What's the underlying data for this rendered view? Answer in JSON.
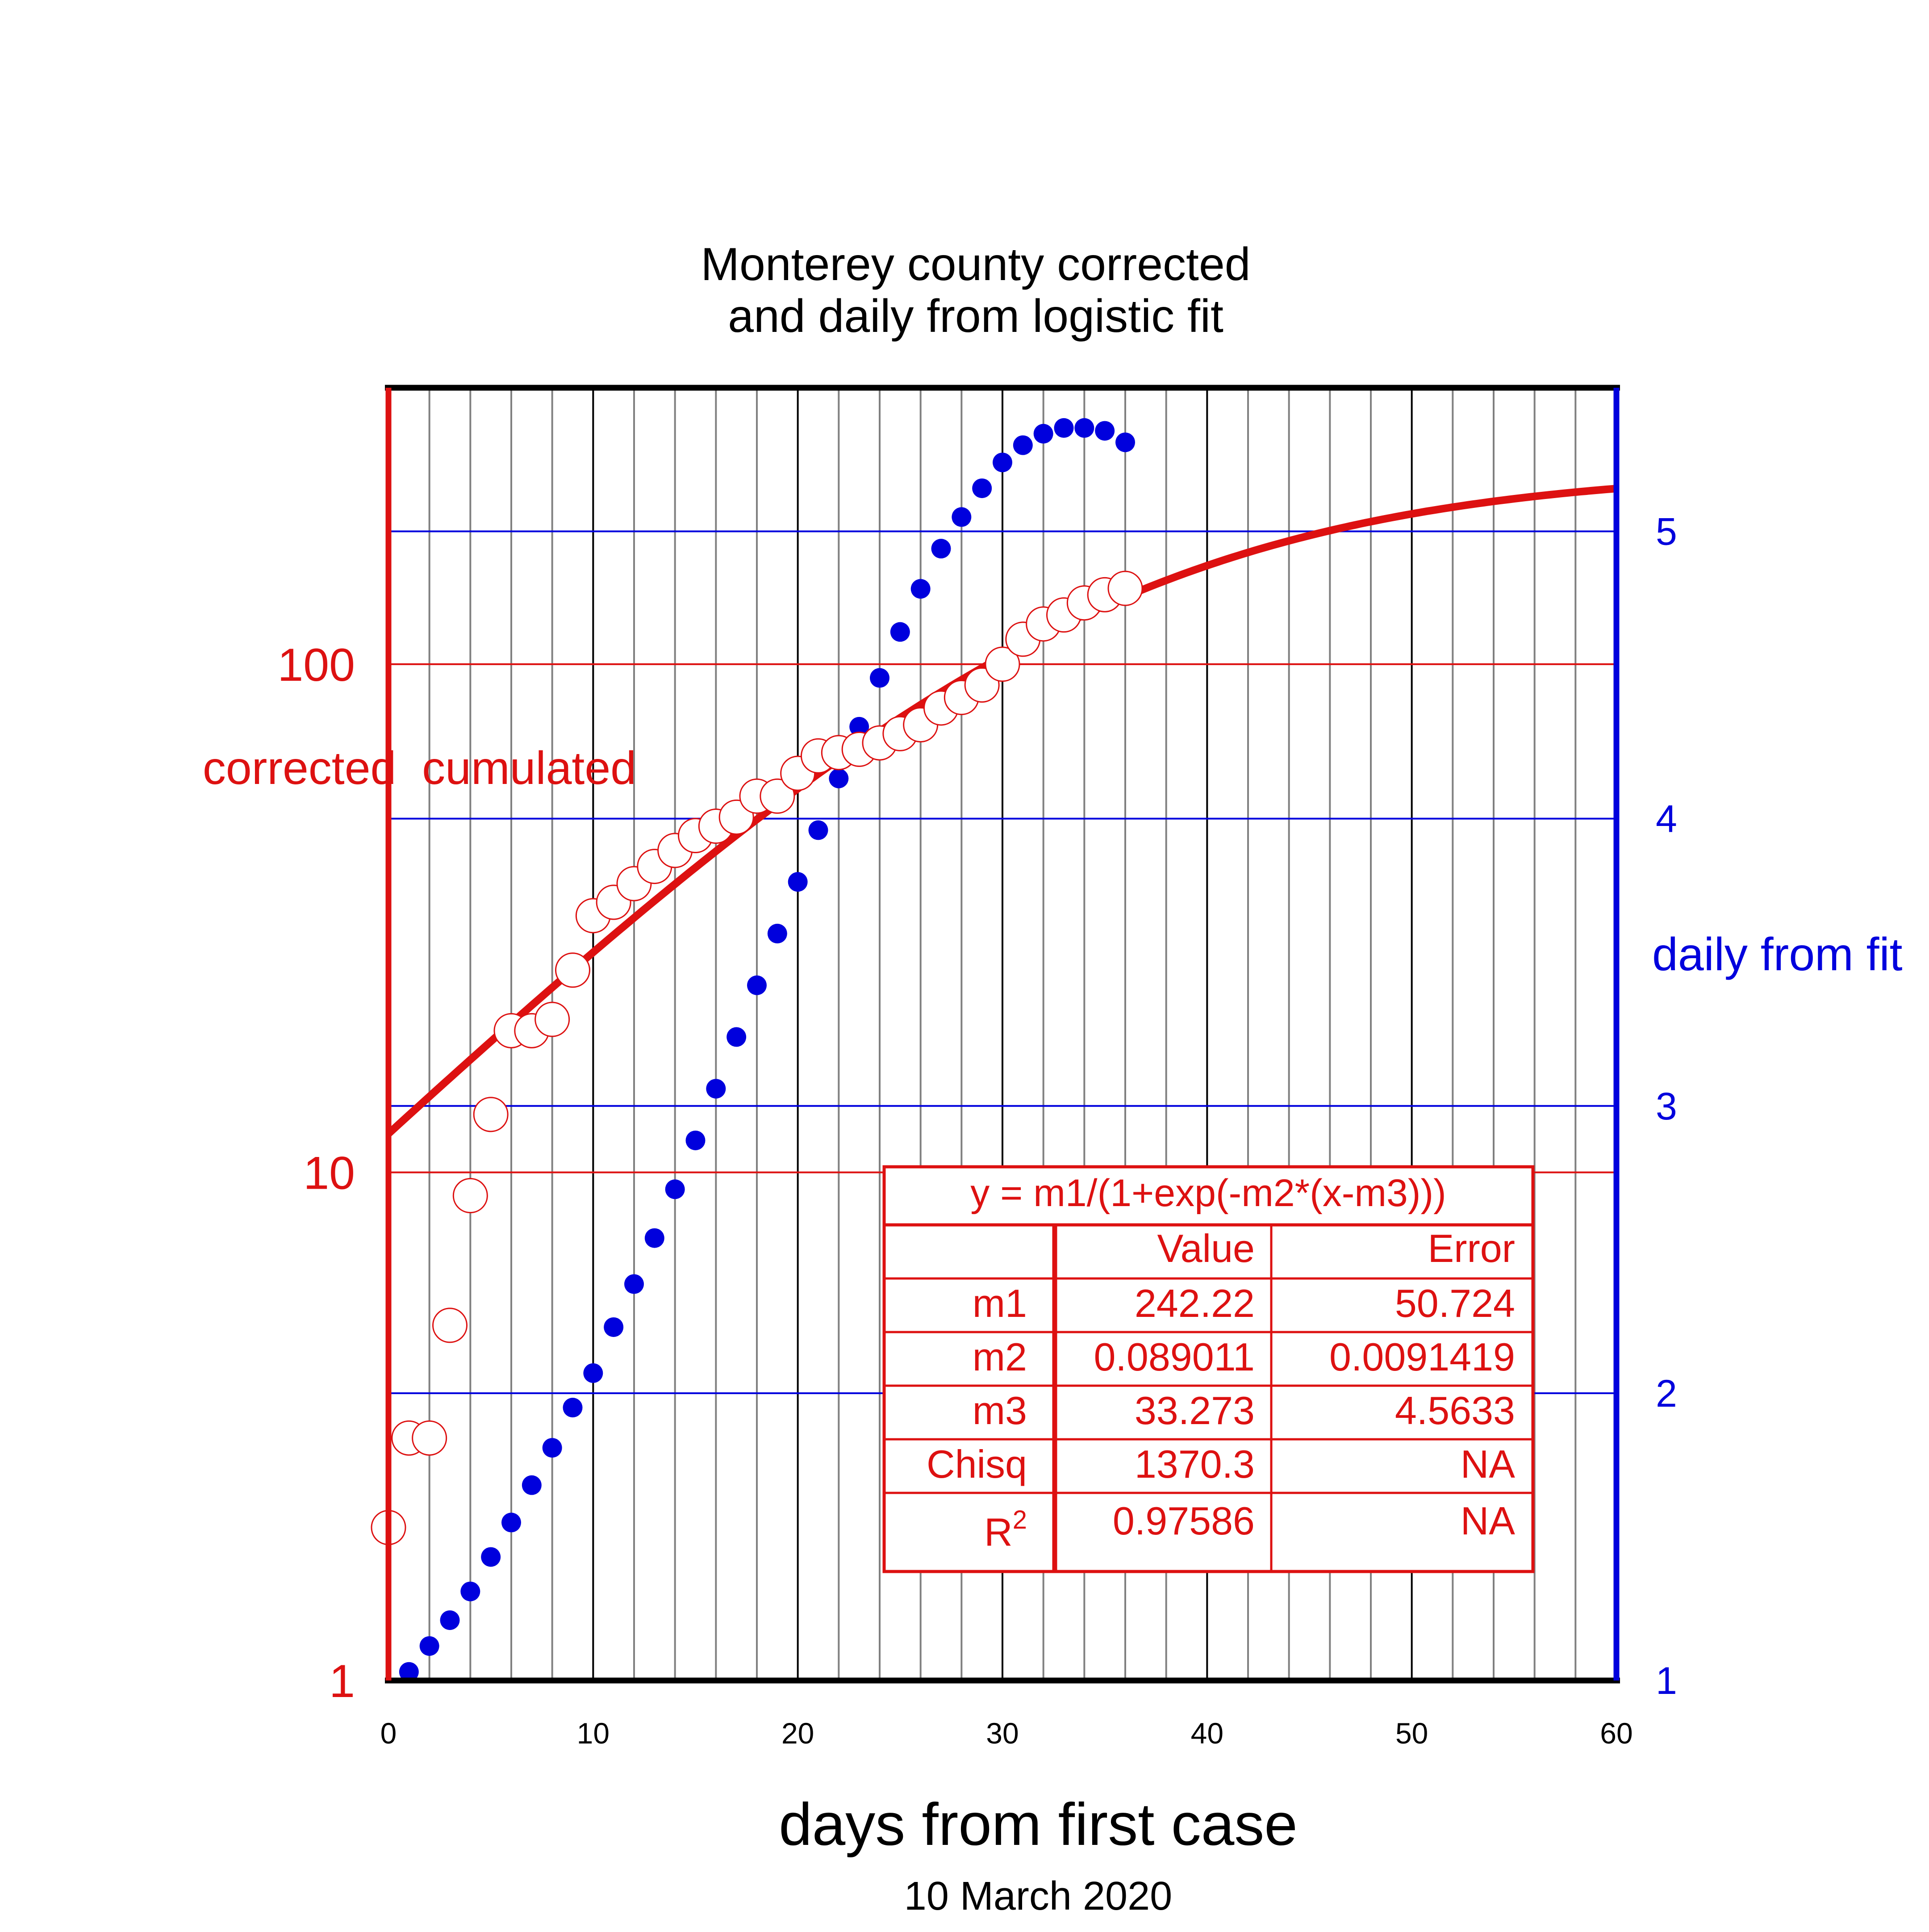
{
  "chart_data": {
    "type": "scatter",
    "title_line1": "Monterey county corrected",
    "title_line2": "and daily from logistic fit",
    "xlabel": "days from first case",
    "xsublabel": "10 March 2020",
    "ylabel_left": "corrected  cumulated",
    "ylabel_right": "daily from fit",
    "left_axis": {
      "scale": "log",
      "ylim": [
        1,
        350
      ],
      "ticks": [
        1,
        10,
        100
      ],
      "tick_labels": [
        "1",
        "10",
        "100"
      ]
    },
    "right_axis": {
      "scale": "linear",
      "ylim": [
        1,
        5.5
      ],
      "ticks": [
        1,
        2,
        3,
        4,
        5
      ],
      "tick_labels": [
        "1",
        "2",
        "3",
        "4",
        "5"
      ]
    },
    "x_axis": {
      "xlim": [
        0,
        60
      ],
      "ticks": [
        0,
        10,
        20,
        30,
        40,
        50,
        60
      ],
      "tick_labels": [
        "0",
        "10",
        "20",
        "30",
        "40",
        "50",
        "60"
      ]
    },
    "grid": true,
    "colors": {
      "cumulated": "#dd1111",
      "daily": "#0000dd",
      "grid_minor": "#808080",
      "grid_major": "#000000"
    },
    "series": [
      {
        "axis": "left",
        "style": "open-circle",
        "x": [
          0,
          1,
          2,
          3,
          4,
          5,
          6,
          7,
          8,
          9,
          10,
          11,
          12,
          13,
          14,
          15,
          16,
          17,
          18,
          19,
          20,
          21,
          22,
          23,
          24,
          25,
          26,
          27,
          28,
          29,
          30,
          31,
          32,
          33,
          34,
          35,
          36
        ],
        "values": [
          2,
          3,
          3,
          5,
          9,
          13,
          19,
          19,
          20,
          25,
          32,
          34,
          37,
          40,
          43,
          46,
          48,
          50,
          55,
          55,
          61,
          66,
          67,
          68,
          70,
          73,
          76,
          82,
          86,
          91,
          100,
          112,
          120,
          125,
          132,
          137,
          141
        ]
      },
      {
        "axis": "right",
        "style": "filled-dot",
        "x": [
          1,
          2,
          3,
          4,
          5,
          6,
          7,
          8,
          9,
          10,
          11,
          12,
          13,
          14,
          15,
          16,
          17,
          18,
          19,
          20,
          21,
          22,
          23,
          24,
          25,
          26,
          27,
          28,
          29,
          30,
          31,
          32,
          33,
          34,
          35,
          36
        ],
        "values": [
          1.03,
          1.12,
          1.21,
          1.31,
          1.43,
          1.55,
          1.68,
          1.81,
          1.95,
          2.07,
          2.23,
          2.38,
          2.54,
          2.71,
          2.88,
          3.06,
          3.24,
          3.42,
          3.6,
          3.78,
          3.96,
          4.14,
          4.32,
          4.49,
          4.65,
          4.8,
          4.94,
          5.05,
          5.15,
          5.24,
          5.3,
          5.34,
          5.36,
          5.36,
          5.35,
          5.31
        ]
      }
    ],
    "fit": {
      "axis": "left",
      "style": "line",
      "formula_type": "logistic",
      "m1": 242.22,
      "m2": 0.089011,
      "m3": 33.273,
      "x_range": [
        0,
        60
      ]
    },
    "fit_table": {
      "formula": "y = m1/(1+exp(-m2*(x-m3)))",
      "header": [
        "",
        "Value",
        "Error"
      ],
      "rows": [
        [
          "m1",
          "242.22",
          "50.724"
        ],
        [
          "m2",
          "0.089011",
          "0.0091419"
        ],
        [
          "m3",
          "33.273",
          "4.5633"
        ],
        [
          "Chisq",
          "1370.3",
          "NA"
        ]
      ],
      "r2_label": "R",
      "r2_sup": "2",
      "r2_value": "0.97586",
      "r2_error": "NA"
    }
  }
}
